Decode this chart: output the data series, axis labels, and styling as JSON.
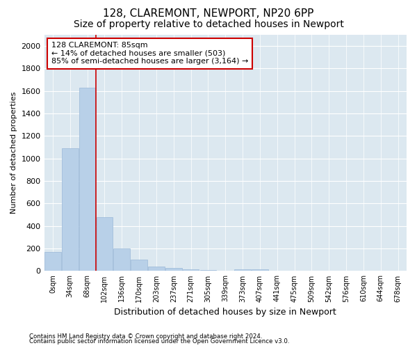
{
  "title": "128, CLAREMONT, NEWPORT, NP20 6PP",
  "subtitle": "Size of property relative to detached houses in Newport",
  "xlabel": "Distribution of detached houses by size in Newport",
  "ylabel": "Number of detached properties",
  "footer_line1": "Contains HM Land Registry data © Crown copyright and database right 2024.",
  "footer_line2": "Contains public sector information licensed under the Open Government Licence v3.0.",
  "annotation_title": "128 CLAREMONT: 85sqm",
  "annotation_line1": "← 14% of detached houses are smaller (503)",
  "annotation_line2": "85% of semi-detached houses are larger (3,164) →",
  "bar_color": "#b8d0e8",
  "bar_edge_color": "#9ab8d8",
  "vline_color": "#cc0000",
  "vline_x": 2.5,
  "categories": [
    "0sqm",
    "34sqm",
    "68sqm",
    "102sqm",
    "136sqm",
    "170sqm",
    "203sqm",
    "237sqm",
    "271sqm",
    "305sqm",
    "339sqm",
    "373sqm",
    "407sqm",
    "441sqm",
    "475sqm",
    "509sqm",
    "542sqm",
    "576sqm",
    "610sqm",
    "644sqm",
    "678sqm"
  ],
  "values": [
    170,
    1090,
    1630,
    480,
    200,
    100,
    42,
    25,
    18,
    10,
    0,
    18,
    18,
    0,
    0,
    0,
    0,
    0,
    0,
    0,
    0
  ],
  "ylim": [
    0,
    2100
  ],
  "yticks": [
    0,
    200,
    400,
    600,
    800,
    1000,
    1200,
    1400,
    1600,
    1800,
    2000
  ],
  "background_color": "#ffffff",
  "plot_background": "#dce8f0",
  "grid_color": "#ffffff",
  "title_fontsize": 11,
  "subtitle_fontsize": 10,
  "annotation_box_edgecolor": "#cc0000",
  "annotation_box_facecolor": "#ffffff"
}
